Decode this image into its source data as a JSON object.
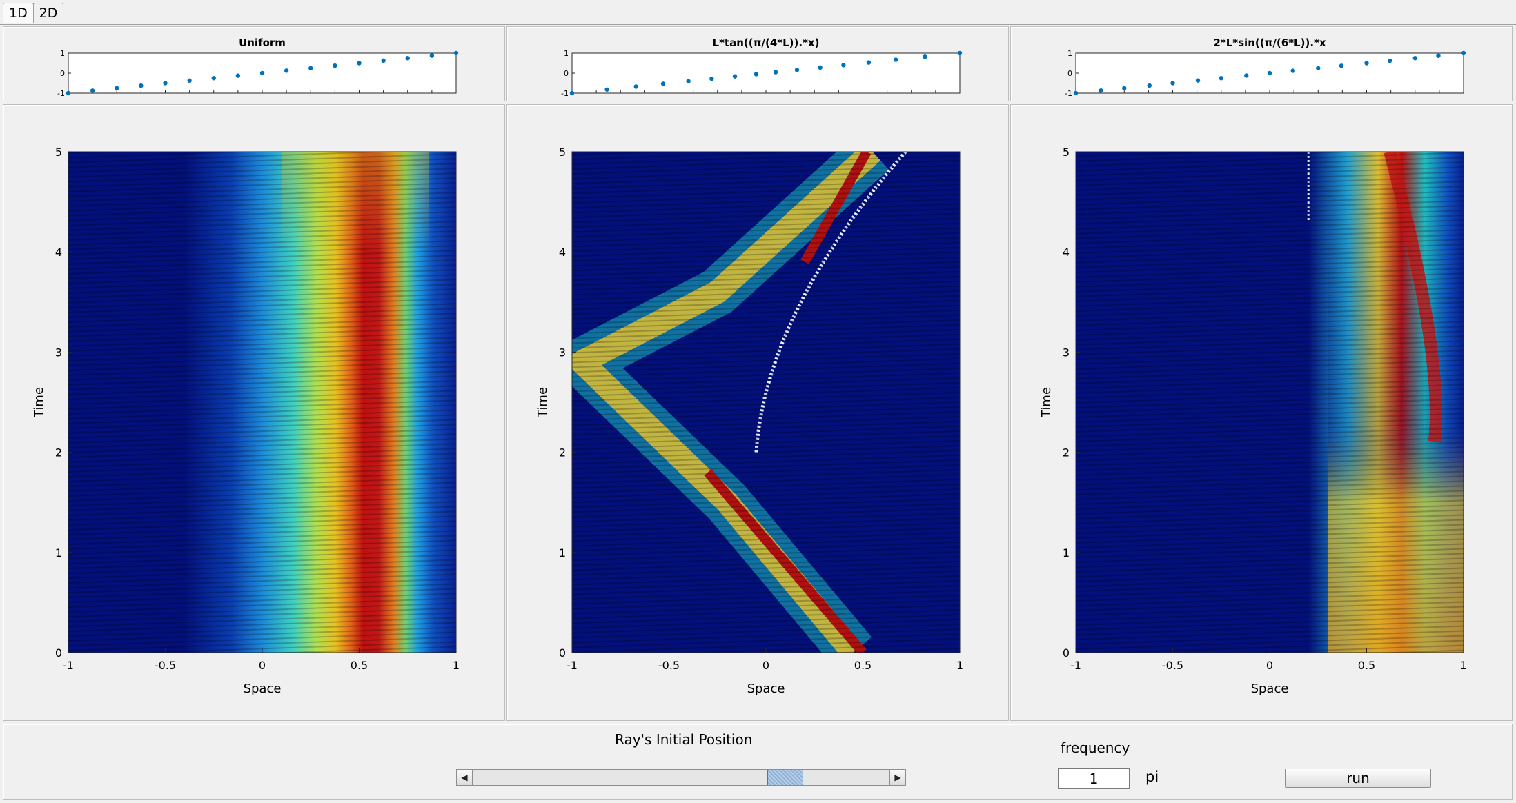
{
  "tabs": [
    "1D",
    "2D"
  ],
  "plots": [
    {
      "title": "Uniform",
      "small_x": [
        -1,
        -0.875,
        -0.75,
        -0.625,
        -0.5,
        -0.375,
        -0.25,
        -0.125,
        0,
        0.125,
        0.25,
        0.375,
        0.5,
        0.625,
        0.75,
        0.875,
        1
      ],
      "small_y": [
        -1,
        -0.875,
        -0.75,
        -0.625,
        -0.5,
        -0.375,
        -0.25,
        -0.125,
        0,
        0.125,
        0.25,
        0.375,
        0.5,
        0.625,
        0.75,
        0.875,
        1
      ],
      "heat_kind": "uniform"
    },
    {
      "title": "L*tan((π/(4*L)).*x)",
      "small_x": [
        -1,
        -0.82,
        -0.67,
        -0.53,
        -0.4,
        -0.28,
        -0.16,
        -0.05,
        0.05,
        0.16,
        0.28,
        0.4,
        0.53,
        0.67,
        0.82,
        1
      ],
      "small_y": [
        -1,
        -0.82,
        -0.67,
        -0.53,
        -0.4,
        -0.28,
        -0.16,
        -0.05,
        0.05,
        0.16,
        0.28,
        0.4,
        0.53,
        0.67,
        0.82,
        1
      ],
      "heat_kind": "tan"
    },
    {
      "title": "2*L*sin((π/(6*L)).*x",
      "small_x": [
        -1,
        -0.87,
        -0.75,
        -0.62,
        -0.5,
        -0.37,
        -0.25,
        -0.12,
        0,
        0.12,
        0.25,
        0.37,
        0.5,
        0.62,
        0.75,
        0.87,
        1
      ],
      "small_y": [
        -1,
        -0.87,
        -0.75,
        -0.62,
        -0.5,
        -0.37,
        -0.25,
        -0.12,
        0,
        0.12,
        0.25,
        0.37,
        0.5,
        0.62,
        0.75,
        0.87,
        1
      ],
      "heat_kind": "sin"
    }
  ],
  "axes": {
    "small_yticks": [
      "1",
      "0",
      "-1"
    ],
    "big_xticks": [
      "-1",
      "-0.5",
      "0",
      "0.5",
      "1"
    ],
    "big_yticks": [
      "0",
      "1",
      "2",
      "3",
      "4",
      "5"
    ],
    "xlabel": "Space",
    "ylabel": "Time",
    "xlim": [
      -1,
      1
    ],
    "ylim": [
      0,
      5
    ]
  },
  "chart_data": [
    {
      "type": "scatter",
      "title": "Uniform",
      "ylim": [
        -1,
        1
      ],
      "xlim": [
        -1,
        1
      ],
      "x": [
        -1,
        -0.875,
        -0.75,
        -0.625,
        -0.5,
        -0.375,
        -0.25,
        -0.125,
        0,
        0.125,
        0.25,
        0.375,
        0.5,
        0.625,
        0.75,
        0.875,
        1
      ],
      "y": [
        -1,
        -0.875,
        -0.75,
        -0.625,
        -0.5,
        -0.375,
        -0.25,
        -0.125,
        0,
        0.125,
        0.25,
        0.375,
        0.5,
        0.625,
        0.75,
        0.875,
        1
      ]
    },
    {
      "type": "scatter",
      "title": "L*tan((π/(4*L)).*x)",
      "ylim": [
        -1,
        1
      ],
      "xlim": [
        -1,
        1
      ],
      "x": [
        -1,
        -0.82,
        -0.67,
        -0.53,
        -0.4,
        -0.28,
        -0.16,
        -0.05,
        0.05,
        0.16,
        0.28,
        0.4,
        0.53,
        0.67,
        0.82,
        1
      ],
      "y": [
        -1,
        -0.82,
        -0.67,
        -0.53,
        -0.4,
        -0.28,
        -0.16,
        -0.05,
        0.05,
        0.16,
        0.28,
        0.4,
        0.53,
        0.67,
        0.82,
        1
      ]
    },
    {
      "type": "scatter",
      "title": "2*L*sin((π/(6*L)).*x",
      "ylim": [
        -1,
        1
      ],
      "xlim": [
        -1,
        1
      ],
      "x": [
        -1,
        -0.87,
        -0.75,
        -0.62,
        -0.5,
        -0.37,
        -0.25,
        -0.12,
        0,
        0.12,
        0.25,
        0.37,
        0.5,
        0.62,
        0.75,
        0.87,
        1
      ],
      "y": [
        -1,
        -0.87,
        -0.75,
        -0.62,
        -0.5,
        -0.37,
        -0.25,
        -0.12,
        0,
        0.12,
        0.25,
        0.37,
        0.5,
        0.62,
        0.75,
        0.87,
        1
      ]
    },
    {
      "type": "heatmap",
      "xlabel": "Space",
      "ylabel": "Time",
      "xlim": [
        -1,
        1
      ],
      "ylim": [
        0,
        5
      ]
    },
    {
      "type": "heatmap",
      "xlabel": "Space",
      "ylabel": "Time",
      "xlim": [
        -1,
        1
      ],
      "ylim": [
        0,
        5
      ]
    },
    {
      "type": "heatmap",
      "xlabel": "Space",
      "ylabel": "Time",
      "xlim": [
        -1,
        1
      ],
      "ylim": [
        0,
        5
      ]
    }
  ],
  "controls": {
    "slider_title": "Ray's Initial Position",
    "slider_value": 0.77,
    "frequency_label": "frequency",
    "frequency_value": "1",
    "pi_label": "pi",
    "run_label": "run"
  },
  "colors": {
    "marker": "#0072bd",
    "background": "#f0f0f0"
  }
}
